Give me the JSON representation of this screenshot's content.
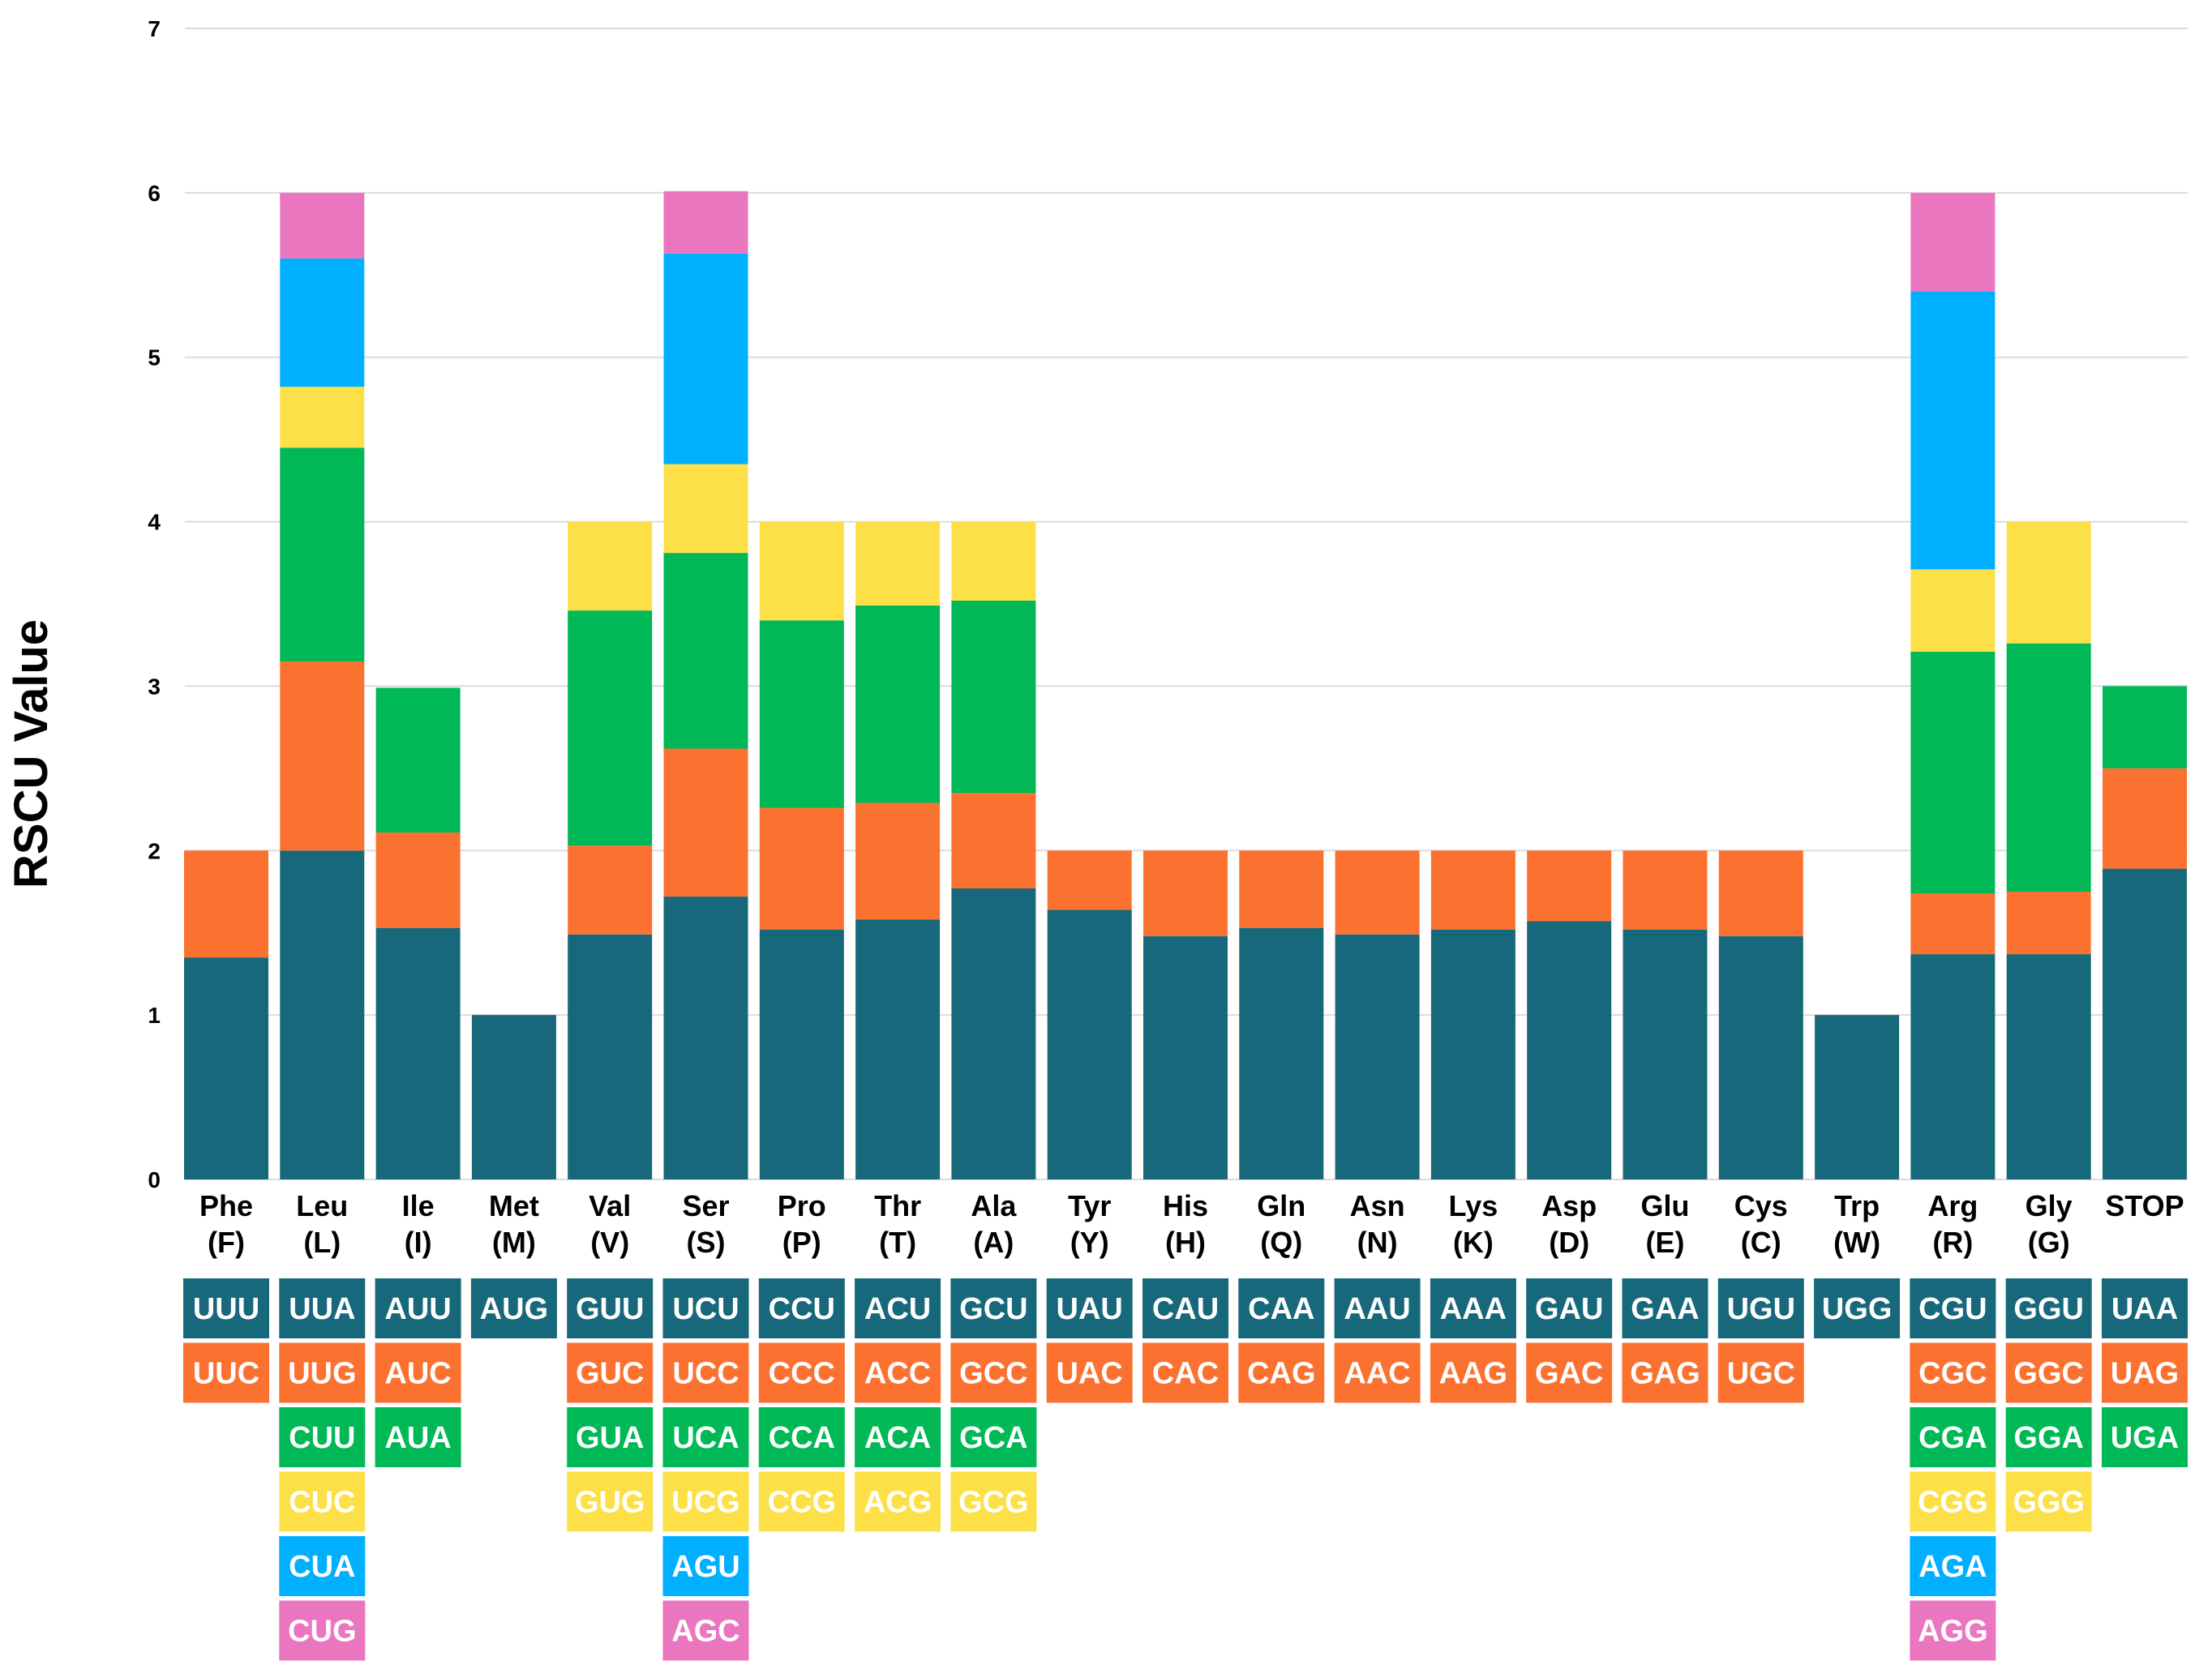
{
  "chart_data": {
    "type": "bar",
    "stacked": true,
    "title": "",
    "xlabel": "",
    "ylabel": "RSCU Value",
    "ylim": [
      0,
      7
    ],
    "yticks": [
      0,
      1,
      2,
      3,
      4,
      5,
      6,
      7
    ],
    "grid": true,
    "colors": [
      "#17687a",
      "#fb7130",
      "#00b856",
      "#fde047",
      "#00b0ff",
      "#ea76c0"
    ],
    "categories": [
      {
        "name": "Phe",
        "abbr": "(F)",
        "codons": [
          "UUU",
          "UUC"
        ],
        "values": [
          1.35,
          0.65
        ]
      },
      {
        "name": "Leu",
        "abbr": "(L)",
        "codons": [
          "UUA",
          "UUG",
          "CUU",
          "CUC",
          "CUA",
          "CUG"
        ],
        "values": [
          2.0,
          1.15,
          1.3,
          0.37,
          0.78,
          0.4
        ]
      },
      {
        "name": "Ile",
        "abbr": "(I)",
        "codons": [
          "AUU",
          "AUC",
          "AUA"
        ],
        "values": [
          1.53,
          0.58,
          0.88
        ]
      },
      {
        "name": "Met",
        "abbr": "(M)",
        "codons": [
          "AUG"
        ],
        "values": [
          1.0
        ]
      },
      {
        "name": "Val",
        "abbr": "(V)",
        "codons": [
          "GUU",
          "GUC",
          "GUA",
          "GUG"
        ],
        "values": [
          1.49,
          0.54,
          1.43,
          0.54
        ]
      },
      {
        "name": "Ser",
        "abbr": "(S)",
        "codons": [
          "UCU",
          "UCC",
          "UCA",
          "UCG",
          "AGU",
          "AGC"
        ],
        "values": [
          1.72,
          0.9,
          1.19,
          0.54,
          1.28,
          0.38
        ]
      },
      {
        "name": "Pro",
        "abbr": "(P)",
        "codons": [
          "CCU",
          "CCC",
          "CCA",
          "CCG"
        ],
        "values": [
          1.52,
          0.74,
          1.14,
          0.6
        ]
      },
      {
        "name": "Thr",
        "abbr": "(T)",
        "codons": [
          "ACU",
          "ACC",
          "ACA",
          "ACG"
        ],
        "values": [
          1.58,
          0.71,
          1.2,
          0.51
        ]
      },
      {
        "name": "Ala",
        "abbr": "(A)",
        "codons": [
          "GCU",
          "GCC",
          "GCA",
          "GCG"
        ],
        "values": [
          1.77,
          0.58,
          1.17,
          0.48
        ]
      },
      {
        "name": "Tyr",
        "abbr": "(Y)",
        "codons": [
          "UAU",
          "UAC"
        ],
        "values": [
          1.64,
          0.36
        ]
      },
      {
        "name": "His",
        "abbr": "(H)",
        "codons": [
          "CAU",
          "CAC"
        ],
        "values": [
          1.48,
          0.52
        ]
      },
      {
        "name": "Gln",
        "abbr": "(Q)",
        "codons": [
          "CAA",
          "CAG"
        ],
        "values": [
          1.53,
          0.47
        ]
      },
      {
        "name": "Asn",
        "abbr": "(N)",
        "codons": [
          "AAU",
          "AAC"
        ],
        "values": [
          1.49,
          0.51
        ]
      },
      {
        "name": "Lys",
        "abbr": "(K)",
        "codons": [
          "AAA",
          "AAG"
        ],
        "values": [
          1.52,
          0.48
        ]
      },
      {
        "name": "Asp",
        "abbr": "(D)",
        "codons": [
          "GAU",
          "GAC"
        ],
        "values": [
          1.57,
          0.43
        ]
      },
      {
        "name": "Glu",
        "abbr": "(E)",
        "codons": [
          "GAA",
          "GAG"
        ],
        "values": [
          1.52,
          0.48
        ]
      },
      {
        "name": "Cys",
        "abbr": "(C)",
        "codons": [
          "UGU",
          "UGC"
        ],
        "values": [
          1.48,
          0.52
        ]
      },
      {
        "name": "Trp",
        "abbr": "(W)",
        "codons": [
          "UGG"
        ],
        "values": [
          1.0
        ]
      },
      {
        "name": "Arg",
        "abbr": "(R)",
        "codons": [
          "CGU",
          "CGC",
          "CGA",
          "CGG",
          "AGA",
          "AGG"
        ],
        "values": [
          1.37,
          0.37,
          1.47,
          0.5,
          1.69,
          0.6
        ]
      },
      {
        "name": "Gly",
        "abbr": "(G)",
        "codons": [
          "GGU",
          "GGC",
          "GGA",
          "GGG"
        ],
        "values": [
          1.37,
          0.38,
          1.51,
          0.74
        ]
      },
      {
        "name": "STOP",
        "abbr": "",
        "codons": [
          "UAA",
          "UAG",
          "UGA"
        ],
        "values": [
          1.89,
          0.61,
          0.5
        ]
      }
    ]
  }
}
